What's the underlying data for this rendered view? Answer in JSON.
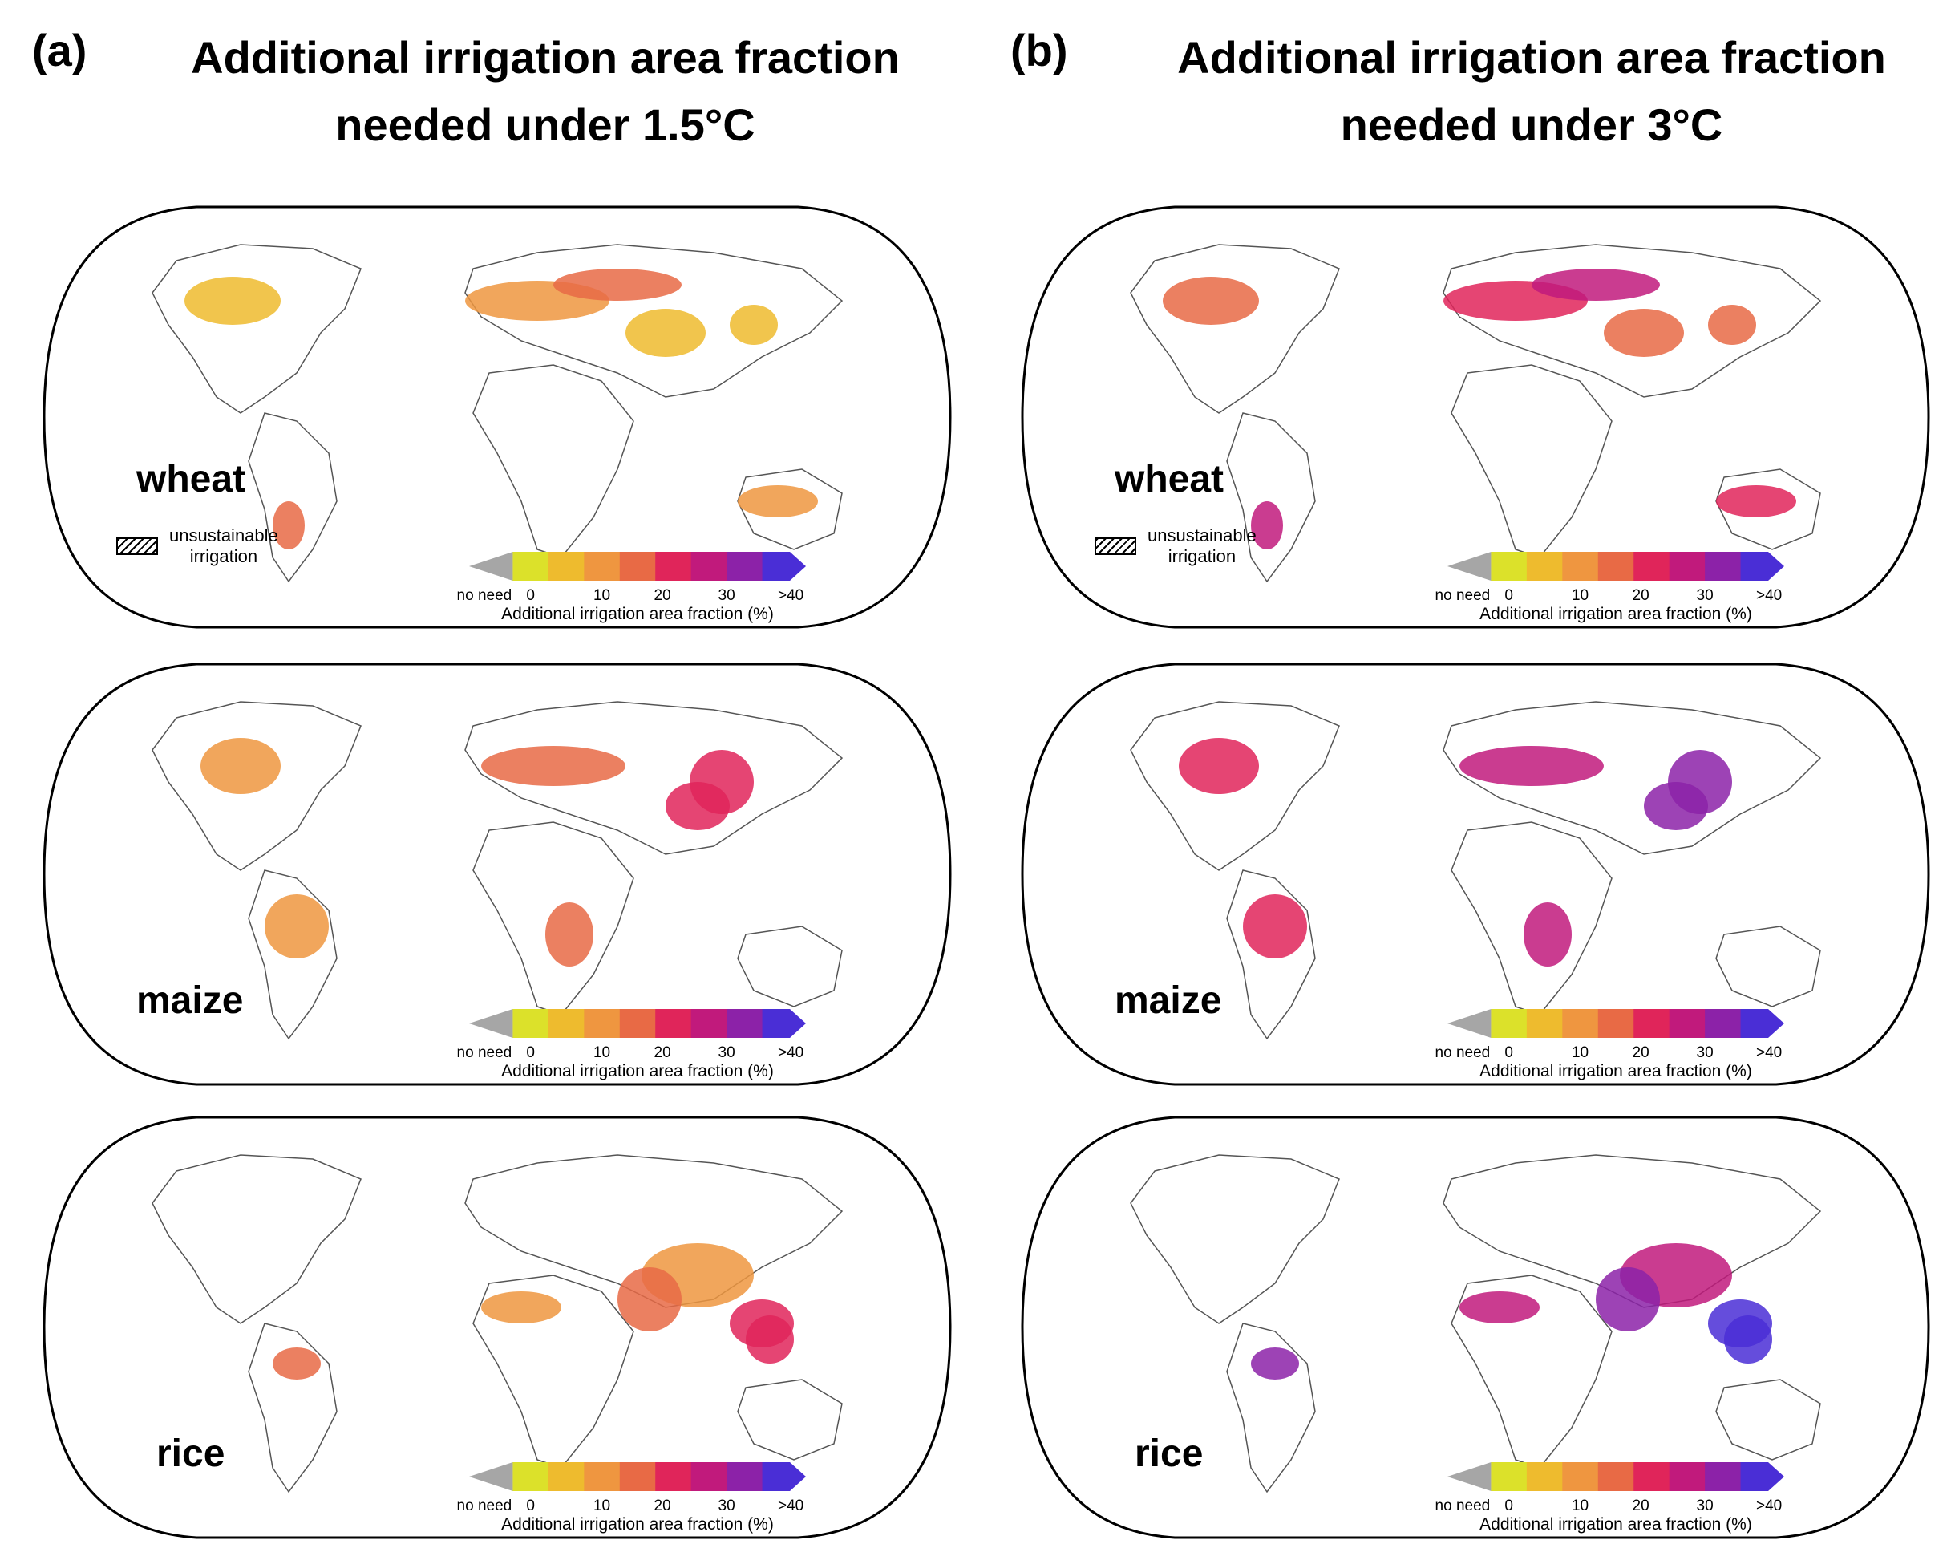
{
  "columns": [
    {
      "letter": "(a)",
      "title_line1": "Additional irrigation area fraction",
      "title_line2": "needed under 1.5°C"
    },
    {
      "letter": "(b)",
      "title_line1": "Additional irrigation area fraction",
      "title_line2": "needed under 3°C"
    }
  ],
  "crops": [
    "wheat",
    "maize",
    "rice"
  ],
  "legend": {
    "hatch_line1": "unsustainable",
    "hatch_line2": "irrigation"
  },
  "colorbar": {
    "ticks": [
      "no need",
      "0",
      "10",
      "20",
      "30",
      ">40"
    ],
    "label": "Additional irrigation area fraction (%)",
    "colors": [
      "#a6a6a6",
      "#dce12a",
      "#eebb2e",
      "#ef9640",
      "#e86a45",
      "#e0255a",
      "#c11a7c",
      "#8c22a8",
      "#4a2ed6"
    ]
  },
  "panels_values": {
    "a_wheat": 0.35,
    "a_maize": 0.45,
    "a_rice": 0.45,
    "b_wheat": 0.6,
    "b_maize": 0.7,
    "b_rice": 0.85
  }
}
